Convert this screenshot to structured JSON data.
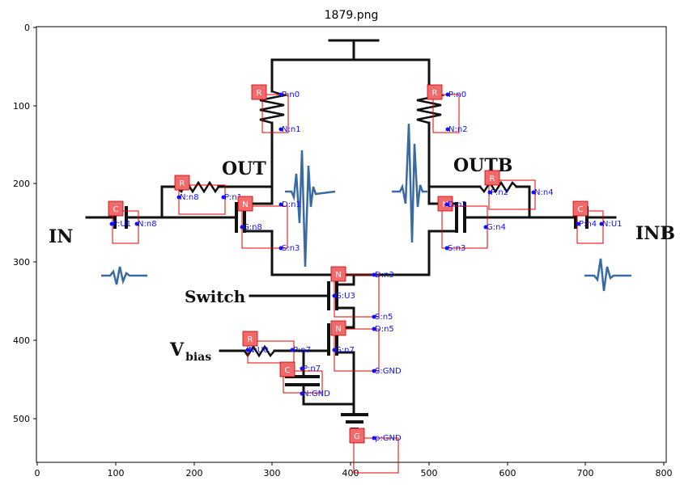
{
  "title": "1879.png",
  "axes": {
    "x_ticks": [
      "0",
      "100",
      "200",
      "300",
      "400",
      "500",
      "600",
      "700",
      "800"
    ],
    "y_ticks": [
      "0",
      "100",
      "200",
      "300",
      "400",
      "500"
    ]
  },
  "circuit_text": {
    "in": "IN",
    "inb": "INB",
    "out": "OUT",
    "outb": "OUTB",
    "switch": "Switch",
    "vbias_v": "V",
    "vbias_sub": "bias"
  },
  "components": [
    {
      "type": "R",
      "pins": [
        "P:n0",
        "N:n1"
      ]
    },
    {
      "type": "R",
      "pins": [
        "P:n0",
        "N:n2"
      ]
    },
    {
      "type": "R",
      "pins": [
        "N:n8",
        "P:n1"
      ]
    },
    {
      "type": "R",
      "pins": [
        "P:n2",
        "N:n4"
      ]
    },
    {
      "type": "C",
      "pins": [
        "P:U1",
        "N:n8"
      ]
    },
    {
      "type": "C",
      "pins": [
        "P:n4",
        "N:U1"
      ]
    },
    {
      "type": "N",
      "pins": [
        "D:n1",
        "G:n8",
        "S:n3"
      ]
    },
    {
      "type": "N",
      "pins": [
        "D:n2",
        "G:n4",
        "S:n3"
      ]
    },
    {
      "type": "N",
      "pins": [
        "D:n3",
        "G:U3",
        "S:n5"
      ]
    },
    {
      "type": "N",
      "pins": [
        "D:n5",
        "G:n7",
        "S:GND"
      ]
    },
    {
      "type": "R",
      "pins": [
        "N:U0",
        "P:n7"
      ]
    },
    {
      "type": "C",
      "pins": [
        "P:n7",
        "N:GND"
      ]
    },
    {
      "type": "G",
      "pins": [
        "p:GND"
      ]
    }
  ]
}
